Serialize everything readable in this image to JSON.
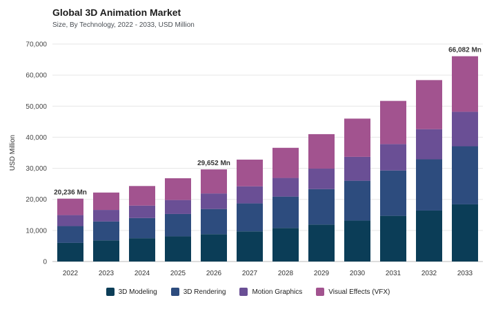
{
  "chart_data": {
    "type": "bar",
    "stacked": true,
    "title": "Global 3D Animation Market",
    "subtitle": "Size, By Technology, 2022 - 2033, USD Million",
    "ylabel": "USD Million",
    "xlabel": "",
    "ylim": [
      0,
      70000
    ],
    "yticks": [
      "0",
      "10,000",
      "20,000",
      "30,000",
      "40,000",
      "50,000",
      "60,000",
      "70,000"
    ],
    "grid": true,
    "legend_position": "bottom",
    "categories": [
      "2022",
      "2023",
      "2024",
      "2025",
      "2026",
      "2027",
      "2028",
      "2029",
      "2030",
      "2031",
      "2032",
      "2033"
    ],
    "series": [
      {
        "name": "3D Modeling",
        "color": "#0b3d57",
        "values": [
          6000,
          6800,
          7500,
          8100,
          8800,
          9700,
          10800,
          11900,
          13200,
          14700,
          16400,
          18400
        ]
      },
      {
        "name": "3D Rendering",
        "color": "#2d4c7e",
        "values": [
          5400,
          6100,
          6500,
          7200,
          8100,
          9000,
          10100,
          11400,
          12800,
          14600,
          16500,
          18700
        ]
      },
      {
        "name": "Motion Graphics",
        "color": "#6a4f95",
        "values": [
          3536,
          3700,
          4000,
          4500,
          5000,
          5500,
          6000,
          6600,
          7700,
          8500,
          9700,
          11100
        ]
      },
      {
        "name": "Visual Effects (VFX)",
        "color": "#a2538f",
        "values": [
          5300,
          5600,
          6300,
          7000,
          7752,
          8600,
          9700,
          11100,
          12300,
          13900,
          15800,
          17882
        ]
      }
    ],
    "annotations": [
      {
        "category": "2022",
        "text": "20,236 Mn"
      },
      {
        "category": "2026",
        "text": "29,652 Mn"
      },
      {
        "category": "2033",
        "text": "66,082 Mn"
      }
    ]
  }
}
